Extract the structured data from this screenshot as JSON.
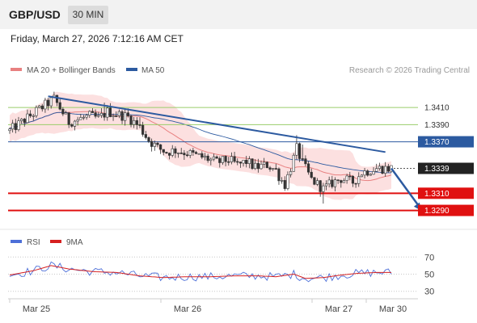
{
  "header": {
    "pair": "GBP/USD",
    "timeframe": "30 MIN"
  },
  "datetime": "Friday, March 27, 2026 7:12:16 AM CET",
  "credit": "Research © 2026 Trading Central",
  "colors": {
    "ma20": "#e88080",
    "ma50": "#2c5aa0",
    "bollinger_fill": "#fbdada",
    "candle_up": "#555555",
    "candle_down": "#333333",
    "support": "#e01010",
    "resistance_current": "#2c5aa0",
    "green_level": "#9acd6a",
    "rsi": "#4d6fd8",
    "rsi_ma": "#d62020"
  },
  "chart_data": {
    "type": "candlestick",
    "x_labels": [
      "Mar 25",
      "Mar 26",
      "Mar 27",
      "Mar 30"
    ],
    "legend": [
      {
        "name": "MA 20 + Bollinger Bands",
        "color": "#e88080"
      },
      {
        "name": "MA 50",
        "color": "#2c5aa0"
      }
    ],
    "ylim": [
      1.3283,
      1.3443
    ],
    "bars": 130,
    "close_path": [
      [
        0,
        1.3383
      ],
      [
        10,
        1.3408
      ],
      [
        15,
        1.342
      ],
      [
        20,
        1.3393
      ],
      [
        27,
        1.34
      ],
      [
        30,
        1.3397
      ],
      [
        33,
        1.3405
      ],
      [
        40,
        1.3399
      ],
      [
        44,
        1.3387
      ],
      [
        47,
        1.3372
      ],
      [
        50,
        1.3363
      ],
      [
        53,
        1.3358
      ],
      [
        56,
        1.336
      ],
      [
        60,
        1.3357
      ],
      [
        64,
        1.3353
      ],
      [
        67,
        1.335
      ],
      [
        70,
        1.3346
      ],
      [
        74,
        1.3349
      ],
      [
        77,
        1.3343
      ],
      [
        80,
        1.3347
      ],
      [
        83,
        1.334
      ],
      [
        87,
        1.3343
      ],
      [
        90,
        1.3337
      ],
      [
        91,
        1.333
      ],
      [
        93,
        1.332
      ],
      [
        95,
        1.334
      ],
      [
        97,
        1.3362
      ],
      [
        99,
        1.3345
      ],
      [
        102,
        1.3326
      ],
      [
        106,
        1.3315
      ],
      [
        109,
        1.3322
      ],
      [
        112,
        1.3327
      ],
      [
        116,
        1.3323
      ],
      [
        119,
        1.3334
      ],
      [
        124,
        1.3339
      ],
      [
        129,
        1.3339
      ]
    ],
    "levels": [
      {
        "value": 1.341,
        "label": "1.3410",
        "style": "green"
      },
      {
        "value": 1.339,
        "label": "1.3390",
        "style": "green"
      },
      {
        "value": 1.337,
        "label": "1.3370",
        "style": "blue"
      },
      {
        "value": 1.3339,
        "label": "1.3339",
        "style": "current"
      },
      {
        "value": 1.331,
        "label": "1.3310",
        "style": "red"
      },
      {
        "value": 1.329,
        "label": "1.3290",
        "style": "red"
      }
    ],
    "trendline": {
      "from": [
        13,
        1.3423
      ],
      "to": [
        127,
        1.3358
      ]
    },
    "forecast_arrow": {
      "from": [
        129,
        1.3339
      ],
      "to": [
        139,
        1.329
      ]
    },
    "rsi": {
      "legend": [
        {
          "name": "RSI",
          "color": "#4d6fd8"
        },
        {
          "name": "9MA",
          "color": "#d62020"
        }
      ],
      "ylim": [
        25,
        75
      ],
      "ticks": [
        70,
        50,
        30
      ],
      "ma_path": [
        [
          0,
          49
        ],
        [
          8,
          54
        ],
        [
          14,
          60
        ],
        [
          20,
          56
        ],
        [
          28,
          53
        ],
        [
          36,
          52
        ],
        [
          44,
          48
        ],
        [
          52,
          46
        ],
        [
          60,
          47
        ],
        [
          68,
          47
        ],
        [
          76,
          48
        ],
        [
          84,
          48
        ],
        [
          90,
          47
        ],
        [
          96,
          50
        ],
        [
          100,
          45
        ],
        [
          106,
          46
        ],
        [
          112,
          49
        ],
        [
          118,
          51
        ],
        [
          124,
          52
        ],
        [
          129,
          52
        ]
      ]
    }
  }
}
